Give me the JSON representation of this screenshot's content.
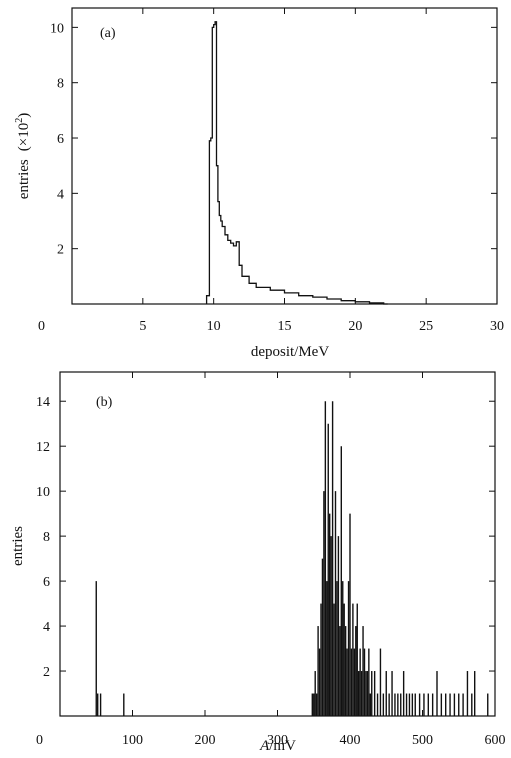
{
  "chart_data": [
    {
      "type": "line",
      "panel_label": "(a)",
      "xlabel": "deposit/MeV",
      "ylabel": "entries (×10²)",
      "ylabel_main": "entries",
      "ylabel_unit": "(×10",
      "ylabel_sup": "2",
      "ylabel_close": ")",
      "xlim": [
        0,
        30
      ],
      "ylim": [
        0,
        10.7
      ],
      "xticks": [
        5,
        10,
        15,
        20,
        25,
        30
      ],
      "xtick_labels": [
        "5",
        "10",
        "15",
        "20",
        "25",
        "30"
      ],
      "yticks": [
        2,
        4,
        6,
        8,
        10
      ],
      "ytick_labels": [
        "2",
        "4",
        "6",
        "8",
        "10"
      ],
      "origin_label": "0",
      "x": [
        9.5,
        9.7,
        9.8,
        9.9,
        10.0,
        10.1,
        10.2,
        10.3,
        10.4,
        10.5,
        10.6,
        10.8,
        11.0,
        11.2,
        11.4,
        11.6,
        11.8,
        12.0,
        12.5,
        13.0,
        14.0,
        15.0,
        16.0,
        17.0,
        18.0,
        19.0,
        20.0,
        21.0,
        22.0
      ],
      "y": [
        0.3,
        5.9,
        6.0,
        10.0,
        10.1,
        10.2,
        5.0,
        3.7,
        3.2,
        3.0,
        2.8,
        2.5,
        2.3,
        2.2,
        2.1,
        2.25,
        1.4,
        1.0,
        0.75,
        0.6,
        0.5,
        0.4,
        0.3,
        0.25,
        0.18,
        0.12,
        0.08,
        0.04,
        0.0
      ]
    },
    {
      "type": "bar",
      "panel_label": "(b)",
      "xlabel": "A/mV",
      "xlabel_var": "A",
      "xlabel_unit": "/mV",
      "ylabel": "entries",
      "xlim": [
        0,
        600
      ],
      "ylim": [
        0,
        15.3
      ],
      "xticks": [
        100,
        200,
        300,
        400,
        500,
        600
      ],
      "xtick_labels": [
        "100",
        "200",
        "300",
        "400",
        "500",
        "600"
      ],
      "yticks": [
        2,
        4,
        6,
        8,
        10,
        12,
        14
      ],
      "ytick_labels": [
        "2",
        "4",
        "6",
        "8",
        "10",
        "12",
        "14"
      ],
      "origin_label": "0",
      "x": [
        50,
        52,
        56,
        88,
        348,
        350,
        352,
        354,
        356,
        358,
        360,
        362,
        364,
        366,
        368,
        370,
        372,
        374,
        376,
        378,
        380,
        382,
        384,
        386,
        388,
        390,
        392,
        394,
        396,
        398,
        400,
        402,
        404,
        406,
        408,
        410,
        412,
        414,
        416,
        418,
        420,
        422,
        424,
        426,
        428,
        430,
        434,
        438,
        442,
        446,
        450,
        454,
        458,
        462,
        466,
        470,
        474,
        478,
        482,
        486,
        490,
        496,
        502,
        508,
        514,
        520,
        526,
        532,
        538,
        544,
        550,
        556,
        562,
        568,
        572,
        590
      ],
      "y": [
        6,
        1,
        1,
        1,
        1,
        1,
        2,
        1,
        4,
        3,
        5,
        7,
        10,
        14,
        6,
        13,
        9,
        8,
        14,
        5,
        10,
        6,
        8,
        4,
        12,
        6,
        5,
        4,
        3,
        6,
        9,
        3,
        5,
        3,
        4,
        5,
        2,
        3,
        2,
        4,
        3,
        2,
        2,
        3,
        1,
        2,
        2,
        1,
        3,
        1,
        2,
        1,
        2,
        1,
        1,
        1,
        2,
        1,
        1,
        1,
        1,
        1,
        1,
        1,
        1,
        2,
        1,
        1,
        1,
        1,
        1,
        1,
        2,
        1,
        2,
        1
      ]
    }
  ]
}
